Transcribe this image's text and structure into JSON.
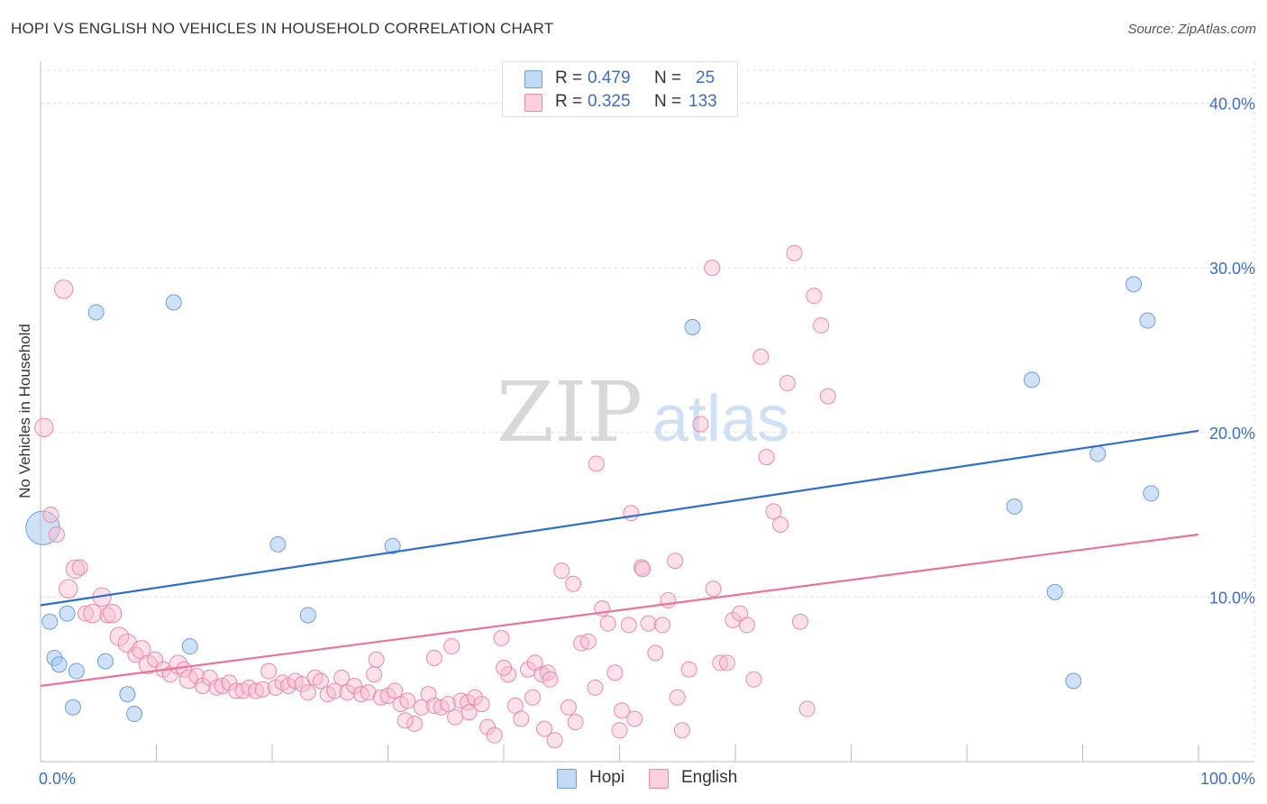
{
  "header": {
    "title": "HOPI VS ENGLISH NO VEHICLES IN HOUSEHOLD CORRELATION CHART",
    "source": "Source: ZipAtlas.com"
  },
  "watermark": {
    "zip": "ZIP",
    "atlas": "atlas"
  },
  "legend": {
    "rows": [
      {
        "r_label": "R =",
        "r_value": "0.479",
        "n_label": "N =",
        "n_value": "25",
        "color": "#a8c8f0",
        "border": "#6e9fdc"
      },
      {
        "r_label": "R =",
        "r_value": "0.325",
        "n_label": "N =",
        "n_value": "133",
        "color": "#f8bcd0",
        "border": "#e98aa8"
      }
    ]
  },
  "bottom_legend": {
    "items": [
      "Hopi",
      "English"
    ]
  },
  "chart_data": {
    "type": "scatter",
    "title": "HOPI VS ENGLISH NO VEHICLES IN HOUSEHOLD CORRELATION CHART",
    "xlabel": "",
    "ylabel": "No Vehicles in Household",
    "xlim": [
      0,
      100
    ],
    "ylim": [
      0,
      42
    ],
    "x_tick_labels": [
      "0.0%",
      "100.0%"
    ],
    "y_ticks": [
      10,
      20,
      30,
      40
    ],
    "y_tick_labels": [
      "10.0%",
      "20.0%",
      "30.0%",
      "40.0%"
    ],
    "grid": true,
    "legend_position": "top-center",
    "series": [
      {
        "name": "Hopi",
        "color": "#a8c8f0",
        "edge": "#6e9fdc",
        "trend_color": "#2f6fcc",
        "trend": {
          "x": [
            0,
            100
          ],
          "y": [
            9.5,
            20.1
          ]
        },
        "points": [
          [
            0.2,
            14.2,
            22
          ],
          [
            0.8,
            8.5,
            10
          ],
          [
            1.2,
            6.3,
            10
          ],
          [
            1.6,
            5.9,
            10
          ],
          [
            2.3,
            9.0,
            10
          ],
          [
            2.8,
            3.3,
            10
          ],
          [
            3.1,
            5.5,
            10
          ],
          [
            4.8,
            27.3,
            10
          ],
          [
            5.6,
            6.1,
            10
          ],
          [
            7.5,
            4.1,
            10
          ],
          [
            8.1,
            2.9,
            10
          ],
          [
            11.5,
            27.9,
            10
          ],
          [
            12.9,
            7.0,
            10
          ],
          [
            20.5,
            13.2,
            10
          ],
          [
            23.1,
            8.9,
            10
          ],
          [
            30.4,
            13.1,
            10
          ],
          [
            56.3,
            26.4,
            10
          ],
          [
            85.6,
            23.2,
            10
          ],
          [
            84.1,
            15.5,
            10
          ],
          [
            87.6,
            10.3,
            10
          ],
          [
            89.2,
            4.9,
            10
          ],
          [
            91.3,
            18.7,
            10
          ],
          [
            94.4,
            29.0,
            10
          ],
          [
            95.6,
            26.8,
            10
          ],
          [
            95.9,
            16.3,
            10
          ]
        ]
      },
      {
        "name": "English",
        "color": "#f8bcd0",
        "edge": "#e98aa8",
        "trend_color": "#e8739b",
        "trend": {
          "x": [
            0,
            100
          ],
          "y": [
            4.6,
            13.8
          ]
        },
        "points": [
          [
            0.3,
            20.3,
            12
          ],
          [
            0.9,
            15.0,
            10
          ],
          [
            1.4,
            13.8,
            10
          ],
          [
            2.0,
            28.7,
            12
          ],
          [
            2.4,
            10.5,
            12
          ],
          [
            3.0,
            11.7,
            12
          ],
          [
            3.4,
            11.8,
            10
          ],
          [
            3.9,
            9.0,
            10
          ],
          [
            4.5,
            9.0,
            12
          ],
          [
            5.3,
            10.0,
            12
          ],
          [
            5.8,
            8.9,
            10
          ],
          [
            6.2,
            9.0,
            12
          ],
          [
            6.8,
            7.6,
            12
          ],
          [
            7.5,
            7.2,
            12
          ],
          [
            8.2,
            6.5,
            10
          ],
          [
            8.7,
            6.8,
            12
          ],
          [
            9.3,
            5.9,
            12
          ],
          [
            9.9,
            6.2,
            10
          ],
          [
            10.6,
            5.6,
            10
          ],
          [
            11.2,
            5.3,
            10
          ],
          [
            11.9,
            5.9,
            12
          ],
          [
            12.4,
            5.6,
            10
          ],
          [
            12.8,
            5.0,
            12
          ],
          [
            13.5,
            5.2,
            10
          ],
          [
            14.0,
            4.6,
            10
          ],
          [
            14.6,
            5.1,
            10
          ],
          [
            15.2,
            4.5,
            10
          ],
          [
            15.7,
            4.6,
            10
          ],
          [
            16.3,
            4.8,
            10
          ],
          [
            16.9,
            4.3,
            10
          ],
          [
            17.5,
            4.3,
            10
          ],
          [
            18.0,
            4.5,
            10
          ],
          [
            18.6,
            4.3,
            10
          ],
          [
            19.2,
            4.4,
            10
          ],
          [
            19.7,
            5.5,
            10
          ],
          [
            20.3,
            4.5,
            10
          ],
          [
            20.9,
            4.8,
            10
          ],
          [
            21.4,
            4.6,
            10
          ],
          [
            22.0,
            4.9,
            10
          ],
          [
            22.6,
            4.7,
            10
          ],
          [
            23.1,
            4.2,
            10
          ],
          [
            23.7,
            5.1,
            10
          ],
          [
            24.2,
            4.9,
            10
          ],
          [
            24.8,
            4.1,
            10
          ],
          [
            25.4,
            4.3,
            10
          ],
          [
            26.0,
            5.1,
            10
          ],
          [
            26.5,
            4.2,
            10
          ],
          [
            27.1,
            4.6,
            10
          ],
          [
            27.7,
            4.1,
            10
          ],
          [
            28.3,
            4.2,
            10
          ],
          [
            28.8,
            5.3,
            10
          ],
          [
            29.4,
            3.9,
            10
          ],
          [
            30.0,
            4.0,
            10
          ],
          [
            30.6,
            4.3,
            10
          ],
          [
            31.1,
            3.5,
            10
          ],
          [
            31.7,
            3.7,
            10
          ],
          [
            32.3,
            2.3,
            10
          ],
          [
            32.9,
            3.3,
            10
          ],
          [
            33.5,
            4.1,
            10
          ],
          [
            34.0,
            3.4,
            10
          ],
          [
            34.6,
            3.3,
            10
          ],
          [
            35.2,
            3.5,
            10
          ],
          [
            35.8,
            2.7,
            10
          ],
          [
            36.3,
            3.7,
            10
          ],
          [
            36.9,
            3.6,
            10
          ],
          [
            37.5,
            3.9,
            10
          ],
          [
            38.1,
            3.5,
            10
          ],
          [
            38.6,
            2.1,
            10
          ],
          [
            39.2,
            1.6,
            10
          ],
          [
            39.8,
            7.5,
            10
          ],
          [
            40.4,
            5.3,
            10
          ],
          [
            41.0,
            3.4,
            10
          ],
          [
            41.5,
            2.6,
            10
          ],
          [
            42.1,
            5.6,
            10
          ],
          [
            42.7,
            6.0,
            10
          ],
          [
            43.3,
            5.3,
            10
          ],
          [
            43.8,
            5.4,
            10
          ],
          [
            44.4,
            1.3,
            10
          ],
          [
            45.0,
            11.6,
            10
          ],
          [
            45.6,
            3.3,
            10
          ],
          [
            46.2,
            2.4,
            10
          ],
          [
            46.7,
            7.2,
            10
          ],
          [
            47.3,
            7.3,
            10
          ],
          [
            47.9,
            4.5,
            10
          ],
          [
            48.5,
            9.3,
            10
          ],
          [
            49.0,
            8.4,
            10
          ],
          [
            49.6,
            5.4,
            10
          ],
          [
            50.2,
            3.1,
            10
          ],
          [
            50.8,
            8.3,
            10
          ],
          [
            51.3,
            2.6,
            10
          ],
          [
            51.9,
            11.8,
            10
          ],
          [
            52.5,
            8.4,
            10
          ],
          [
            53.1,
            6.6,
            10
          ],
          [
            53.7,
            8.3,
            10
          ],
          [
            54.2,
            9.8,
            10
          ],
          [
            54.8,
            12.2,
            10
          ],
          [
            55.4,
            1.9,
            10
          ],
          [
            56.0,
            5.6,
            10
          ],
          [
            57.0,
            20.5,
            10
          ],
          [
            58.1,
            10.5,
            10
          ],
          [
            58.7,
            6.0,
            10
          ],
          [
            59.3,
            6.0,
            10
          ],
          [
            59.8,
            8.6,
            10
          ],
          [
            60.4,
            9.0,
            10
          ],
          [
            61.0,
            8.3,
            10
          ],
          [
            61.6,
            5.0,
            10
          ],
          [
            62.2,
            24.6,
            10
          ],
          [
            62.7,
            18.5,
            10
          ],
          [
            63.3,
            15.2,
            10
          ],
          [
            63.9,
            14.4,
            10
          ],
          [
            64.5,
            23.0,
            10
          ],
          [
            65.1,
            30.9,
            10
          ],
          [
            65.6,
            8.5,
            10
          ],
          [
            66.2,
            3.2,
            10
          ],
          [
            66.8,
            28.3,
            10
          ],
          [
            67.4,
            26.5,
            10
          ],
          [
            68.0,
            22.2,
            10
          ],
          [
            48.0,
            18.1,
            10
          ],
          [
            51.0,
            15.1,
            10
          ],
          [
            46.0,
            10.8,
            10
          ],
          [
            29.0,
            6.2,
            10
          ],
          [
            34.0,
            6.3,
            10
          ],
          [
            40.0,
            5.7,
            10
          ],
          [
            44.0,
            5.0,
            10
          ],
          [
            52.0,
            11.7,
            10
          ],
          [
            58.0,
            30.0,
            10
          ],
          [
            50.0,
            1.9,
            10
          ],
          [
            35.5,
            7.0,
            10
          ],
          [
            42.5,
            3.9,
            10
          ],
          [
            55.0,
            3.9,
            10
          ],
          [
            31.5,
            2.5,
            10
          ],
          [
            37.0,
            3.0,
            10
          ],
          [
            43.5,
            2.0,
            10
          ]
        ]
      }
    ]
  }
}
